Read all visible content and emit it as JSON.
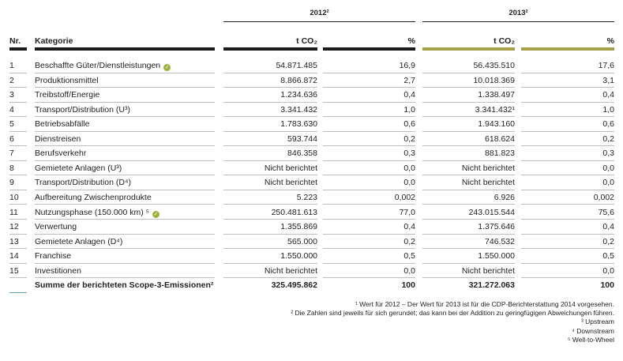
{
  "table": {
    "years": [
      "2012²",
      "2013²"
    ],
    "columns": [
      "Nr.",
      "Kategorie",
      "t CO₂",
      "%",
      "t CO₂",
      "%"
    ],
    "rows": [
      {
        "cells": [
          "1",
          "Beschaffte Güter/Dienstleistungen",
          "54.871.485",
          "16,9",
          "56.435.510",
          "17,6"
        ],
        "verified": true
      },
      {
        "cells": [
          "2",
          "Produktionsmittel",
          "8.866.872",
          "2,7",
          "10.018.369",
          "3,1"
        ]
      },
      {
        "cells": [
          "3",
          "Treibstoff/Energie",
          "1.234.636",
          "0,4",
          "1.338.497",
          "0,4"
        ]
      },
      {
        "cells": [
          "4",
          "Transport/Distribution (U³)",
          "3.341.432",
          "1,0",
          "3.341.432¹",
          "1,0"
        ]
      },
      {
        "cells": [
          "5",
          "Betriebsabfälle",
          "1.783.630",
          "0,6",
          "1.943.160",
          "0,6"
        ]
      },
      {
        "cells": [
          "6",
          "Dienstreisen",
          "593.744",
          "0,2",
          "618.624",
          "0,2"
        ]
      },
      {
        "cells": [
          "7",
          "Berufsverkehr",
          "846.358",
          "0,3",
          "881.823",
          "0,3"
        ]
      },
      {
        "cells": [
          "8",
          "Gemietete Anlagen (U³)",
          "Nicht berichtet",
          "0,0",
          "Nicht berichtet",
          "0,0"
        ]
      },
      {
        "cells": [
          "9",
          "Transport/Distribution (D⁴)",
          "Nicht berichtet",
          "0,0",
          "Nicht berichtet",
          "0,0"
        ]
      },
      {
        "cells": [
          "10",
          "Aufbereitung Zwischenprodukte",
          "5.223",
          "0,002",
          "6.926",
          "0,002"
        ]
      },
      {
        "cells": [
          "11",
          "Nutzungsphase (150.000 km) ⁵",
          "250.481.613",
          "77,0",
          "243.015.544",
          "75,6"
        ],
        "verified": true
      },
      {
        "cells": [
          "12",
          "Verwertung",
          "1.355.869",
          "0,4",
          "1.375.646",
          "0,4"
        ]
      },
      {
        "cells": [
          "13",
          "Gemietete Anlagen (D⁴)",
          "565.000",
          "0,2",
          "746.532",
          "0,2"
        ]
      },
      {
        "cells": [
          "14",
          "Franchise",
          "1.550.000",
          "0,5",
          "1.550.000",
          "0,5"
        ]
      },
      {
        "cells": [
          "15",
          "Investitionen",
          "Nicht berichtet",
          "0,0",
          "Nicht berichtet",
          "0,0"
        ]
      }
    ],
    "total": {
      "label": "Summe der berichteten Scope-3-Emissionen²",
      "values": [
        "325.495.862",
        "100",
        "321.272.063",
        "100"
      ]
    },
    "footnotes": [
      "¹ Wert für 2012 – Der Wert für 2013 ist für die CDP-Berichterstattung 2014 vorgesehen.",
      "² Die Zahlen sind jeweils für sich gerundet; das kann bei der Addition zu geringfügigen Abweichungen führen.",
      "³ Upstream",
      "⁴ Downstream",
      "⁵ Well-to-Wheel"
    ]
  }
}
